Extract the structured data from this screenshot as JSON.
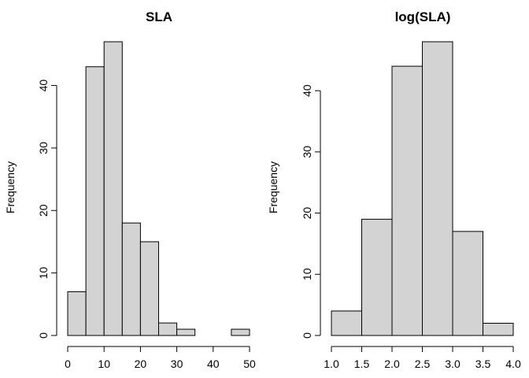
{
  "chart_data": [
    {
      "type": "bar",
      "title": "SLA",
      "xlabel": "",
      "ylabel": "Frequency",
      "bins": [
        [
          0,
          5
        ],
        [
          5,
          10
        ],
        [
          10,
          15
        ],
        [
          15,
          20
        ],
        [
          20,
          25
        ],
        [
          25,
          30
        ],
        [
          30,
          35
        ],
        [
          35,
          40
        ],
        [
          40,
          45
        ],
        [
          45,
          50
        ]
      ],
      "values": [
        7,
        43,
        47,
        18,
        15,
        2,
        1,
        0,
        0,
        1
      ],
      "xlim": [
        0,
        50
      ],
      "ylim": [
        0,
        47
      ],
      "xticks": [
        0,
        10,
        20,
        30,
        40,
        50
      ],
      "yticks": [
        0,
        10,
        20,
        30,
        40
      ],
      "grid": false
    },
    {
      "type": "bar",
      "title": "log(SLA)",
      "xlabel": "",
      "ylabel": "Frequency",
      "bins": [
        [
          1.0,
          1.5
        ],
        [
          1.5,
          2.0
        ],
        [
          2.0,
          2.5
        ],
        [
          2.5,
          3.0
        ],
        [
          3.0,
          3.5
        ],
        [
          3.5,
          4.0
        ]
      ],
      "values": [
        4,
        19,
        44,
        48,
        17,
        2
      ],
      "xlim": [
        1.0,
        4.0
      ],
      "ylim": [
        0,
        48
      ],
      "xticks": [
        "1.0",
        "1.5",
        "2.0",
        "2.5",
        "3.0",
        "3.5",
        "4.0"
      ],
      "yticks": [
        0,
        10,
        20,
        30,
        40
      ],
      "grid": false
    }
  ]
}
